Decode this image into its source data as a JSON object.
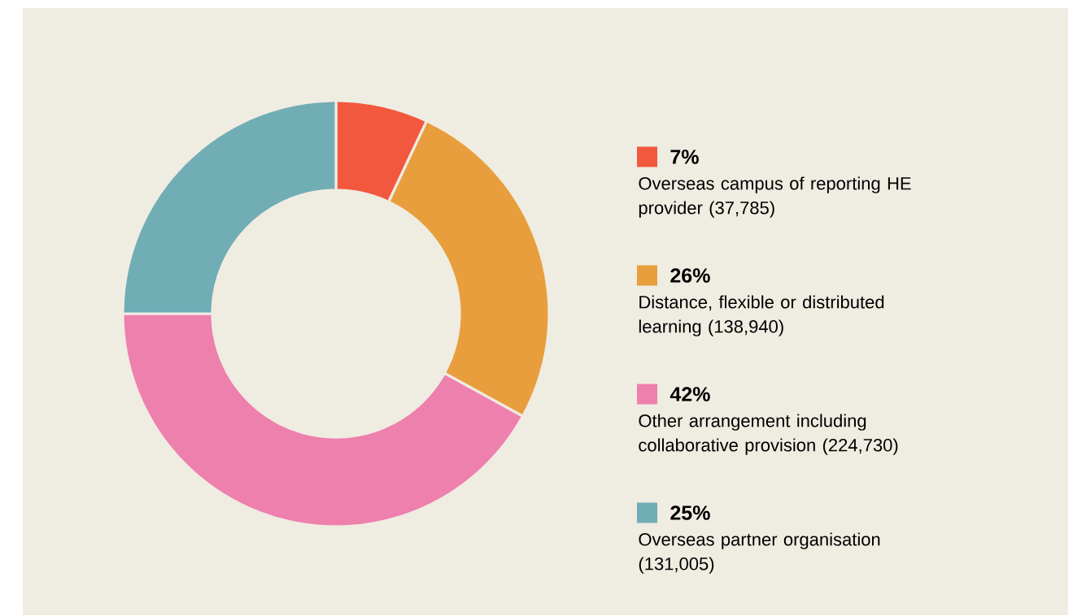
{
  "chart_data": {
    "type": "donut",
    "categories": [
      "Overseas campus of reporting HE provider (37,785)",
      "Distance, flexible or distributed learning (138,940)",
      "Other arrangement including collaborative provision (224,730)",
      "Overseas partner organisation (131,005)"
    ],
    "values": [
      7,
      26,
      42,
      25
    ],
    "value_labels": [
      "7%",
      "26%",
      "42%",
      "25%"
    ],
    "colors": [
      "#f2583e",
      "#e89e3c",
      "#ee80ad",
      "#71adb5"
    ],
    "legend": "right"
  }
}
